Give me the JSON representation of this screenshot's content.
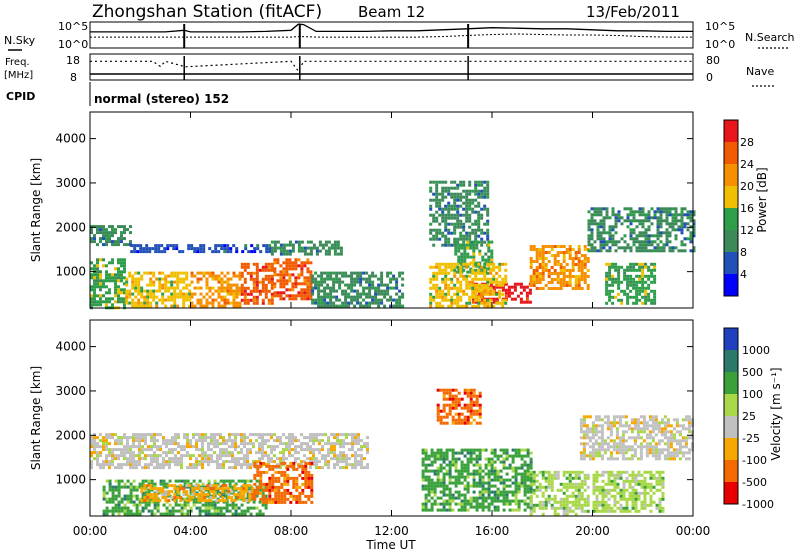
{
  "header": {
    "station": "Zhongshan Station (fitACF)",
    "beam": "Beam 12",
    "date": "13/Feb/2011",
    "cpid_label": "CPID",
    "mode_text": "normal (stereo) 152"
  },
  "colors": {
    "power_scale": [
      "#0000ff",
      "#2050b8",
      "#3c8a5a",
      "#2e9e4a",
      "#f0c000",
      "#f79000",
      "#f15a00",
      "#e8151a"
    ],
    "velocity_scale": [
      "#e80000",
      "#f46a00",
      "#f7a800",
      "#c0c0c0",
      "#a8d848",
      "#3aa03a",
      "#2a7a6a",
      "#2040c0"
    ],
    "panel_frame": "#000000"
  },
  "chart_data": [
    {
      "type": "line",
      "title": "N.Sky / N.Search",
      "left_label": "N.Sky",
      "right_label": "N.Search",
      "left_ticks": [
        "10^5",
        "10^0"
      ],
      "right_ticks": [
        "10^5",
        "10^0"
      ],
      "x": [
        0,
        1,
        2,
        3,
        3.75,
        4,
        5,
        6,
        7,
        8,
        8.3,
        8.5,
        9,
        10,
        11,
        12,
        13,
        14,
        15,
        16,
        17,
        18,
        19,
        20,
        21,
        22,
        23,
        24
      ],
      "series": [
        {
          "name": "N.Sky",
          "values": [
            3.1,
            3.1,
            3.1,
            3.1,
            3.4,
            3.1,
            3.1,
            3.1,
            3.2,
            3.4,
            4.6,
            4.5,
            3.2,
            3.2,
            3.2,
            3.3,
            3.3,
            3.5,
            3.7,
            3.9,
            3.8,
            3.7,
            3.7,
            3.5,
            3.3,
            3.3,
            3.2,
            3.2
          ]
        },
        {
          "name": "N.Search",
          "values": [
            2.1,
            2.1,
            2.1,
            2.1,
            2.1,
            2.1,
            2.1,
            2.1,
            2.1,
            2.1,
            2.2,
            2.2,
            2.1,
            2.1,
            2.1,
            2.1,
            2.1,
            2.2,
            2.4,
            2.6,
            2.7,
            2.6,
            2.5,
            2.5,
            2.4,
            2.2,
            2.1,
            2.1
          ]
        }
      ],
      "ylim": [
        0,
        5
      ]
    },
    {
      "type": "line",
      "title": "Freq / Nave",
      "left_label": "Freq. [MHz]",
      "right_label": "Nave",
      "left_ticks": [
        "18",
        "8"
      ],
      "right_ticks": [
        "80",
        "0"
      ],
      "x": [
        0,
        2.5,
        2.8,
        3,
        3.8,
        8,
        8.3,
        8.5,
        15,
        24
      ],
      "series": [
        {
          "name": "Freq",
          "values": [
            16.5,
            16.5,
            14.2,
            16.5,
            14.0,
            16.5,
            12.0,
            16.5,
            16.5,
            16.5
          ]
        },
        {
          "name": "Nave",
          "values": [
            5,
            5,
            5,
            5,
            5,
            5,
            5,
            5,
            5,
            5
          ]
        }
      ]
    },
    {
      "type": "heatmap",
      "title": "Power",
      "ylabel": "Slant Range [km]",
      "ylim": [
        180,
        4600
      ],
      "y_ticks": [
        1000,
        2000,
        3000,
        4000
      ],
      "colorbar_label": "Power [dB]",
      "colorbar_ticks": [
        4,
        8,
        12,
        16,
        20,
        24,
        28
      ],
      "regions": [
        {
          "t0": 0.0,
          "t1": 1.6,
          "r0": 1620,
          "r1": 2050,
          "level": 2
        },
        {
          "t0": 1.6,
          "t1": 7.2,
          "r0": 1420,
          "r1": 1620,
          "level": 1
        },
        {
          "t0": 7.2,
          "t1": 10.0,
          "r0": 1420,
          "r1": 1700,
          "level": 2
        },
        {
          "t0": 0.0,
          "t1": 1.4,
          "r0": 200,
          "r1": 1300,
          "level": 3
        },
        {
          "t0": 1.4,
          "t1": 4.0,
          "r0": 200,
          "r1": 1000,
          "level": 4
        },
        {
          "t0": 4.0,
          "t1": 6.0,
          "r0": 200,
          "r1": 1000,
          "level": 5
        },
        {
          "t0": 6.0,
          "t1": 7.3,
          "r0": 300,
          "r1": 1200,
          "level": 6
        },
        {
          "t0": 7.3,
          "t1": 8.8,
          "r0": 400,
          "r1": 1300,
          "level": 6
        },
        {
          "t0": 8.8,
          "t1": 12.5,
          "r0": 200,
          "r1": 1000,
          "level": 2
        },
        {
          "t0": 13.5,
          "t1": 15.8,
          "r0": 1600,
          "r1": 3050,
          "level": 2
        },
        {
          "t0": 14.5,
          "t1": 16.0,
          "r0": 1000,
          "r1": 1700,
          "level": 3
        },
        {
          "t0": 15.2,
          "t1": 17.5,
          "r0": 300,
          "r1": 750,
          "level": 7
        },
        {
          "t0": 13.5,
          "t1": 16.5,
          "r0": 200,
          "r1": 1200,
          "level": 4
        },
        {
          "t0": 17.5,
          "t1": 19.8,
          "r0": 600,
          "r1": 1600,
          "level": 5
        },
        {
          "t0": 19.8,
          "t1": 24.0,
          "r0": 1450,
          "r1": 2450,
          "level": 2
        },
        {
          "t0": 20.5,
          "t1": 22.5,
          "r0": 300,
          "r1": 1200,
          "level": 3
        }
      ]
    },
    {
      "type": "heatmap",
      "title": "Velocity",
      "xlabel": "Time UT",
      "ylabel": "Slant Range [km]",
      "ylim": [
        180,
        4600
      ],
      "y_ticks": [
        1000,
        2000,
        3000,
        4000
      ],
      "x_ticks": [
        "00:00",
        "04:00",
        "08:00",
        "12:00",
        "16:00",
        "20:00",
        "00:00"
      ],
      "colorbar_label": "Velocity [m s⁻¹]",
      "colorbar_ticks": [
        "1000",
        "500",
        "100",
        "25",
        "-25",
        "-100",
        "-500",
        "-1000"
      ],
      "regions": [
        {
          "t0": 0.0,
          "t1": 11.0,
          "r0": 1300,
          "r1": 2050,
          "level": 3
        },
        {
          "t0": 19.5,
          "t1": 24.0,
          "r0": 1450,
          "r1": 2450,
          "level": 3
        },
        {
          "t0": 0.5,
          "t1": 7.0,
          "r0": 200,
          "r1": 1000,
          "level": 5
        },
        {
          "t0": 2.0,
          "t1": 6.5,
          "r0": 500,
          "r1": 900,
          "level": 2
        },
        {
          "t0": 6.5,
          "t1": 8.8,
          "r0": 500,
          "r1": 1400,
          "level": 1
        },
        {
          "t0": 13.8,
          "t1": 15.5,
          "r0": 2300,
          "r1": 3050,
          "level": 1
        },
        {
          "t0": 13.2,
          "t1": 17.5,
          "r0": 300,
          "r1": 1700,
          "level": 5
        },
        {
          "t0": 17.5,
          "t1": 19.8,
          "r0": 200,
          "r1": 1200,
          "level": 4
        },
        {
          "t0": 20.0,
          "t1": 22.8,
          "r0": 300,
          "r1": 1200,
          "level": 4
        }
      ]
    }
  ]
}
